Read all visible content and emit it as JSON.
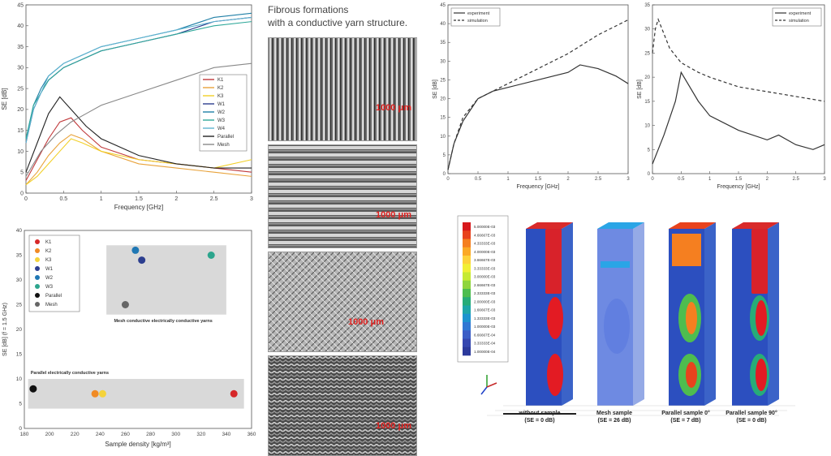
{
  "heading": {
    "line1": "Fibrous formations",
    "line2": "with a conductive yarn structure."
  },
  "chart_data": [
    {
      "type": "line",
      "xlabel": "Frequency [GHz]",
      "ylabel": "SE [dB]",
      "xlim": [
        0,
        3
      ],
      "ylim": [
        0,
        45
      ],
      "xticks": [
        0,
        0.5,
        1,
        1.5,
        2,
        2.5,
        3
      ],
      "yticks": [
        0,
        5,
        10,
        15,
        20,
        25,
        30,
        35,
        40,
        45
      ],
      "legend_position": "right",
      "series": [
        {
          "name": "K1",
          "color": "#c0393b",
          "x": [
            0,
            0.15,
            0.3,
            0.45,
            0.6,
            0.75,
            1.0,
            1.5,
            2.0,
            2.5,
            3.0
          ],
          "y": [
            3,
            8,
            13,
            17,
            18,
            15,
            11,
            8,
            7,
            6,
            5
          ]
        },
        {
          "name": "K2",
          "color": "#e8a23a",
          "x": [
            0,
            0.15,
            0.3,
            0.45,
            0.6,
            0.75,
            1.0,
            1.5,
            2.0,
            2.5,
            3.0
          ],
          "y": [
            2,
            5,
            9,
            12,
            14,
            13,
            10,
            7,
            6,
            5,
            4
          ]
        },
        {
          "name": "K3",
          "color": "#f2d028",
          "x": [
            0,
            0.15,
            0.3,
            0.45,
            0.6,
            0.75,
            1.0,
            1.5,
            2.0,
            2.5,
            3.0
          ],
          "y": [
            2,
            4,
            7,
            10,
            13,
            12,
            10,
            8,
            7,
            6,
            8
          ]
        },
        {
          "name": "W1",
          "color": "#2d3e8f",
          "x": [
            0,
            0.1,
            0.2,
            0.3,
            0.5,
            0.75,
            1.0,
            1.5,
            2.0,
            2.5,
            3.0
          ],
          "y": [
            12,
            20,
            24,
            27,
            30,
            32,
            34,
            36,
            38,
            41,
            42
          ]
        },
        {
          "name": "W2",
          "color": "#1f7fa6",
          "x": [
            0,
            0.1,
            0.2,
            0.3,
            0.5,
            0.75,
            1.0,
            1.5,
            2.0,
            2.5,
            3.0
          ],
          "y": [
            13,
            21,
            25,
            28,
            31,
            33,
            35,
            37,
            39,
            42,
            43
          ]
        },
        {
          "name": "W3",
          "color": "#2fa89a",
          "x": [
            0,
            0.1,
            0.2,
            0.3,
            0.5,
            0.75,
            1.0,
            1.5,
            2.0,
            2.5,
            3.0
          ],
          "y": [
            13,
            21,
            24,
            27,
            30,
            32,
            34,
            36,
            38,
            40,
            41
          ]
        },
        {
          "name": "W4",
          "color": "#5fb3d0",
          "x": [
            0,
            0.1,
            0.2,
            0.3,
            0.5,
            0.75,
            1.0,
            1.5,
            2.0,
            2.5,
            3.0
          ],
          "y": [
            12,
            20,
            24,
            28,
            31,
            33,
            35,
            37,
            39,
            41,
            42
          ]
        },
        {
          "name": "Parallel",
          "color": "#222222",
          "x": [
            0,
            0.15,
            0.3,
            0.45,
            0.6,
            0.8,
            1.0,
            1.5,
            2.0,
            2.5,
            3.0
          ],
          "y": [
            5,
            12,
            19,
            23,
            20,
            16,
            13,
            9,
            7,
            6,
            6
          ]
        },
        {
          "name": "Mesh",
          "color": "#888888",
          "x": [
            0,
            0.2,
            0.4,
            0.6,
            0.8,
            1.0,
            1.5,
            2.0,
            2.5,
            3.0
          ],
          "y": [
            4,
            10,
            14,
            17,
            19,
            21,
            24,
            27,
            30,
            31
          ]
        }
      ]
    },
    {
      "type": "scatter",
      "xlabel": "Sample density [kg/m³]",
      "ylabel": "SE [dB] (f = 1.5 GHz)",
      "xlim": [
        180,
        360
      ],
      "ylim": [
        0,
        40
      ],
      "xticks": [
        180,
        200,
        220,
        240,
        260,
        280,
        300,
        320,
        340,
        360
      ],
      "yticks": [
        0,
        5,
        10,
        15,
        20,
        25,
        30,
        35,
        40
      ],
      "legend_position": "top-left",
      "annotations": [
        "Mesh conductive electrically conductive yarns",
        "Parallel electrically conductive yarns"
      ],
      "series": [
        {
          "name": "K1",
          "color": "#d62728",
          "x": [
            346
          ],
          "y": [
            7
          ]
        },
        {
          "name": "K2",
          "color": "#f08a24",
          "x": [
            236
          ],
          "y": [
            7
          ]
        },
        {
          "name": "K3",
          "color": "#f5d33a",
          "x": [
            242
          ],
          "y": [
            7
          ]
        },
        {
          "name": "W1",
          "color": "#2c3e8f",
          "x": [
            273
          ],
          "y": [
            34
          ]
        },
        {
          "name": "W2",
          "color": "#1f77b4",
          "x": [
            268
          ],
          "y": [
            36
          ]
        },
        {
          "name": "W3",
          "color": "#2ca58d",
          "x": [
            328
          ],
          "y": [
            35
          ]
        },
        {
          "name": "Parallel",
          "color": "#111111",
          "x": [
            187
          ],
          "y": [
            8
          ]
        },
        {
          "name": "Mesh",
          "color": "#666666",
          "x": [
            260
          ],
          "y": [
            25
          ]
        }
      ]
    },
    {
      "type": "line",
      "xlabel": "Frequency [GHz]",
      "ylabel": "SE [dB]",
      "xlim": [
        0,
        3
      ],
      "ylim": [
        0,
        45
      ],
      "xticks": [
        0,
        0.5,
        1,
        1.5,
        2,
        2.5,
        3
      ],
      "yticks": [
        0,
        5,
        10,
        15,
        20,
        25,
        30,
        35,
        40,
        45
      ],
      "legend_position": "top-left",
      "series": [
        {
          "name": "experiment",
          "color": "#333333",
          "dash": "solid",
          "x": [
            0,
            0.1,
            0.25,
            0.5,
            0.75,
            1.0,
            1.5,
            2.0,
            2.2,
            2.5,
            2.8,
            3.0
          ],
          "y": [
            1,
            8,
            14,
            20,
            22,
            23,
            25,
            27,
            29,
            28,
            26,
            24
          ]
        },
        {
          "name": "simulation",
          "color": "#333333",
          "dash": "dashed",
          "x": [
            0,
            0.1,
            0.25,
            0.5,
            0.75,
            1.0,
            1.5,
            2.0,
            2.5,
            3.0
          ],
          "y": [
            1,
            8,
            15,
            20,
            22,
            24,
            28,
            32,
            37,
            41
          ]
        }
      ]
    },
    {
      "type": "line",
      "xlabel": "Frequency [GHz]",
      "ylabel": "SE [dB]",
      "xlim": [
        0,
        3
      ],
      "ylim": [
        0,
        35
      ],
      "xticks": [
        0,
        0.5,
        1,
        1.5,
        2,
        2.5,
        3
      ],
      "yticks": [
        0,
        5,
        10,
        15,
        20,
        25,
        30,
        35
      ],
      "legend_position": "top-right",
      "series": [
        {
          "name": "experiment",
          "color": "#333333",
          "dash": "solid",
          "x": [
            0,
            0.2,
            0.4,
            0.5,
            0.6,
            0.8,
            1.0,
            1.5,
            2.0,
            2.2,
            2.5,
            2.8,
            3.0
          ],
          "y": [
            2,
            8,
            15,
            21,
            19,
            15,
            12,
            9,
            7,
            8,
            6,
            5,
            6
          ]
        },
        {
          "name": "simulation",
          "color": "#333333",
          "dash": "dashed",
          "x": [
            0,
            0.05,
            0.1,
            0.2,
            0.3,
            0.5,
            0.8,
            1.0,
            1.5,
            2.0,
            2.5,
            3.0
          ],
          "y": [
            25,
            30,
            32,
            29,
            26,
            23,
            21,
            20,
            18,
            17,
            16,
            15
          ]
        }
      ]
    },
    {
      "type": "heatmap",
      "colorbar_values": [
        "5.00000E-03",
        "4.66667E-03",
        "4.33333E-03",
        "4.00000E-03",
        "3.66667E-03",
        "3.33333E-03",
        "3.00000E-03",
        "2.66667E-03",
        "2.33333E-03",
        "2.00000E-03",
        "1.66667E-03",
        "1.33333E-03",
        "1.00000E-03",
        "6.66667E-04",
        "3.33333E-04",
        "1.00000E-04"
      ],
      "colorbar_colors": [
        "#d7191c",
        "#e8431d",
        "#f57f20",
        "#fba926",
        "#fdd23a",
        "#f1ef34",
        "#c6ea32",
        "#8fd53c",
        "#4ebd4f",
        "#27ac78",
        "#1ea6a8",
        "#1c93cf",
        "#2f78d4",
        "#3b5dc6",
        "#3547b0",
        "#2c3a9c"
      ],
      "samples": [
        {
          "line1": "without sample",
          "line2": "(SE = 0 dB)"
        },
        {
          "line1": "Mesh sample",
          "line2": "(SE = 26 dB)"
        },
        {
          "line1": "Parallel sample 0°",
          "line2": "(SE = 7 dB)"
        },
        {
          "line1": "Parallel sample 90°",
          "line2": "(SE = 0 dB)"
        }
      ]
    }
  ],
  "micrographs": [
    {
      "scale_label": "1000 μm",
      "pattern": "vertical"
    },
    {
      "scale_label": "1000 μm",
      "pattern": "horizontal"
    },
    {
      "scale_label": "1000 μm",
      "pattern": "crosshatch"
    },
    {
      "scale_label": "1000 μm",
      "pattern": "knit"
    }
  ]
}
